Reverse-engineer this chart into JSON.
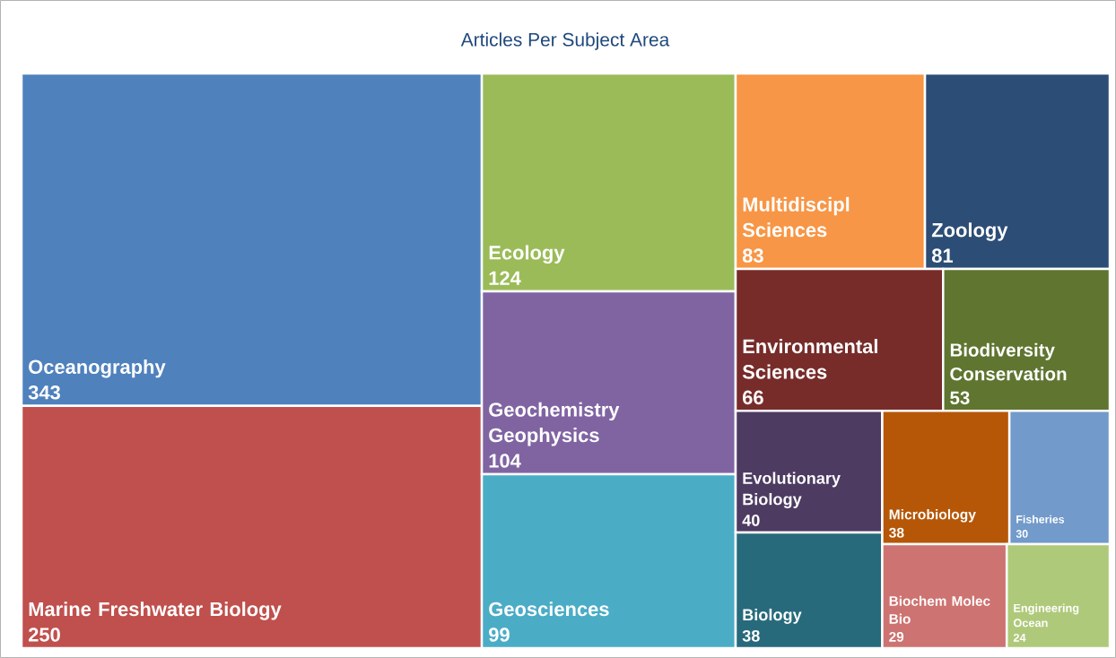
{
  "chart_data": {
    "type": "other",
    "title": "Articles Per Subject Area",
    "categories": [
      "Oceanography",
      "Marine Freshwater Biology",
      "Ecology",
      "Geochemistry Geophysics",
      "Geosciences",
      "Multidiscipl Sciences",
      "Zoology",
      "Environmental Sciences",
      "Biodiversity Conservation",
      "Evolutionary Biology",
      "Biology",
      "Microbiology",
      "Fisheries",
      "Biochem Molec Bio",
      "Engineering Ocean"
    ],
    "values": [
      343,
      250,
      124,
      104,
      99,
      83,
      81,
      66,
      53,
      40,
      38,
      38,
      30,
      29,
      24
    ],
    "colors": [
      "#4f81bd",
      "#c0504d",
      "#9bbb59",
      "#8064a2",
      "#4bacc6",
      "#f79646",
      "#2c4d75",
      "#772c2a",
      "#5f7530",
      "#4d3b62",
      "#276a7c",
      "#b65708",
      "#729aca",
      "#cd7371",
      "#afc97a"
    ],
    "data_labels": true
  }
}
